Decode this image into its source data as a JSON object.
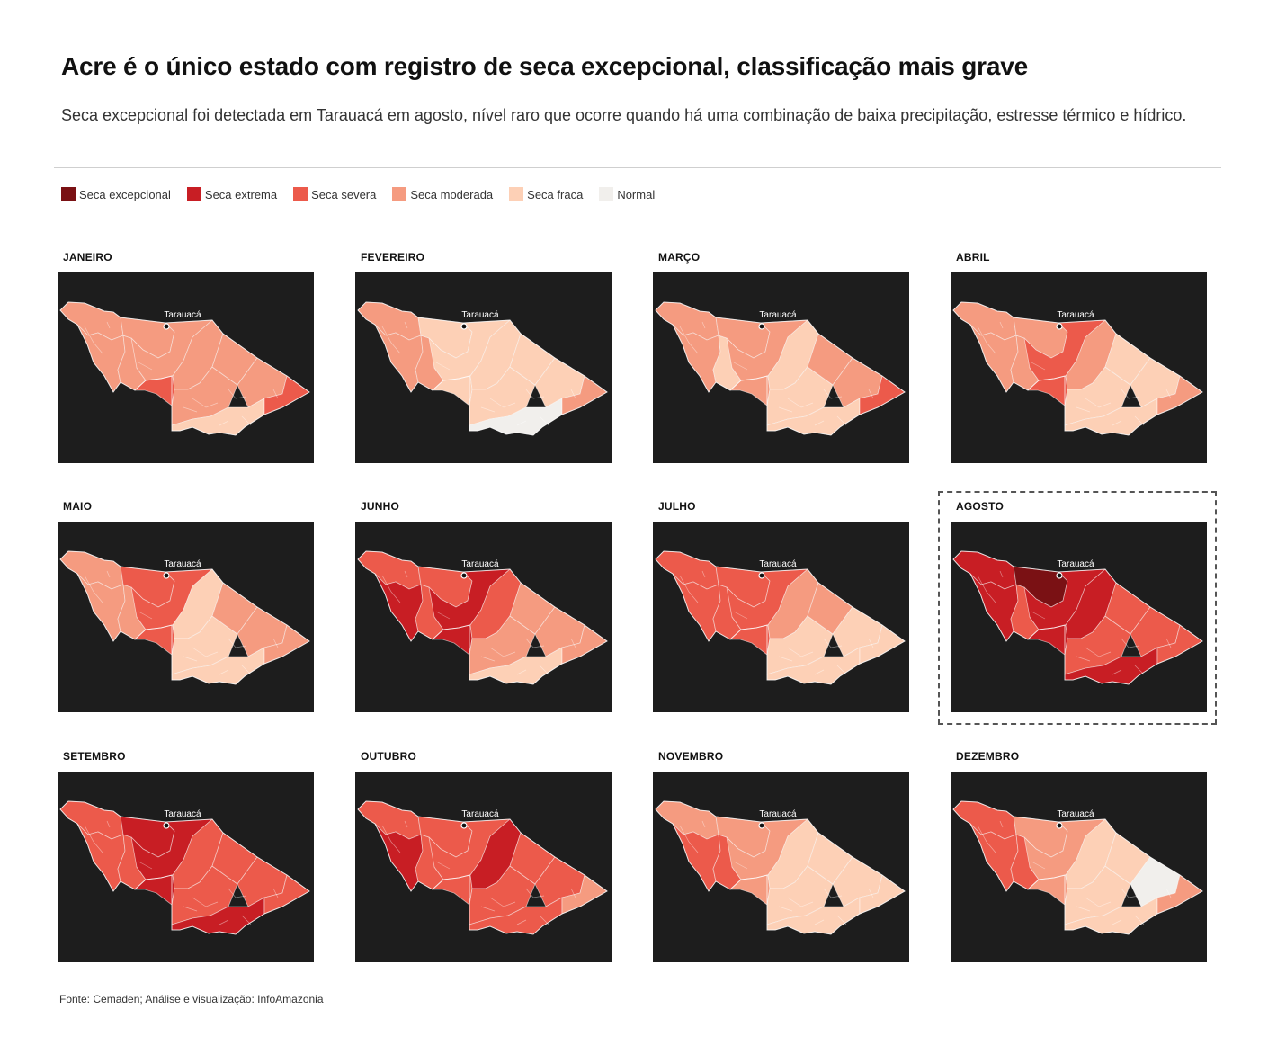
{
  "title": "Acre é o único estado com registro de seca excepcional, classificação mais grave",
  "subtitle": "Seca excepcional foi detectada em Tarauacá em agosto, nível raro que ocorre quando há uma combinação de baixa precipitação, estresse térmico e hídrico.",
  "legend": [
    {
      "label": "Seca excepcional",
      "color": "#7a1114"
    },
    {
      "label": "Seca extrema",
      "color": "#c81e24"
    },
    {
      "label": "Seca severa",
      "color": "#ec5a4b"
    },
    {
      "label": "Seca moderada",
      "color": "#f59b80"
    },
    {
      "label": "Seca fraca",
      "color": "#fdd0b6"
    },
    {
      "label": "Normal",
      "color": "#f1efec"
    }
  ],
  "city": "Tarauacá",
  "highlighted_month": "AGOSTO",
  "months": [
    {
      "name": "JANEIRO",
      "regions": {
        "w1": "seca moderada",
        "w2": "seca moderada",
        "w3": "seca moderada",
        "c1": "seca moderada",
        "c2": "seca moderada",
        "m1": "seca severa",
        "m2": "seca moderada",
        "m3": "seca moderada",
        "e1": "seca moderada",
        "e2": "seca moderada",
        "e3": "seca fraca",
        "e4": "seca severa"
      }
    },
    {
      "name": "FEVEREIRO",
      "regions": {
        "w1": "seca moderada",
        "w2": "seca moderada",
        "w3": "seca moderada",
        "c1": "seca fraca",
        "c2": "seca fraca",
        "m1": "seca fraca",
        "m2": "seca fraca",
        "m3": "seca fraca",
        "e1": "seca fraca",
        "e2": "seca fraca",
        "e3": "normal",
        "e4": "seca moderada"
      }
    },
    {
      "name": "MARÇO",
      "regions": {
        "w1": "seca moderada",
        "w2": "seca moderada",
        "w3": "seca fraca",
        "c1": "seca moderada",
        "c2": "seca moderada",
        "m1": "seca moderada",
        "m2": "seca fraca",
        "m3": "seca fraca",
        "e1": "seca moderada",
        "e2": "seca moderada",
        "e3": "seca fraca",
        "e4": "seca severa"
      }
    },
    {
      "name": "ABRIL",
      "regions": {
        "w1": "seca moderada",
        "w2": "seca moderada",
        "w3": "seca moderada",
        "c1": "seca moderada",
        "c2": "seca severa",
        "m1": "seca severa",
        "m2": "seca moderada",
        "m3": "seca fraca",
        "e1": "seca fraca",
        "e2": "seca fraca",
        "e3": "seca fraca",
        "e4": "seca moderada"
      }
    },
    {
      "name": "MAIO",
      "regions": {
        "w1": "seca moderada",
        "w2": "seca moderada",
        "w3": "seca moderada",
        "c1": "seca severa",
        "c2": "seca severa",
        "m1": "seca severa",
        "m2": "seca fraca",
        "m3": "seca fraca",
        "e1": "seca moderada",
        "e2": "seca moderada",
        "e3": "seca fraca",
        "e4": "seca moderada"
      }
    },
    {
      "name": "JUNHO",
      "regions": {
        "w1": "seca severa",
        "w2": "seca extrema",
        "w3": "seca severa",
        "c1": "seca severa",
        "c2": "seca extrema",
        "m1": "seca extrema",
        "m2": "seca severa",
        "m3": "seca moderada",
        "e1": "seca moderada",
        "e2": "seca moderada",
        "e3": "seca fraca",
        "e4": "seca moderada"
      }
    },
    {
      "name": "JULHO",
      "regions": {
        "w1": "seca severa",
        "w2": "seca severa",
        "w3": "seca severa",
        "c1": "seca severa",
        "c2": "seca severa",
        "m1": "seca severa",
        "m2": "seca moderada",
        "m3": "seca fraca",
        "e1": "seca moderada",
        "e2": "seca fraca",
        "e3": "seca fraca",
        "e4": "seca fraca"
      }
    },
    {
      "name": "AGOSTO",
      "regions": {
        "w1": "seca extrema",
        "w2": "seca extrema",
        "w3": "seca severa",
        "c1": "seca excepcional",
        "c2": "seca extrema",
        "m1": "seca extrema",
        "m2": "seca extrema",
        "m3": "seca severa",
        "e1": "seca severa",
        "e2": "seca severa",
        "e3": "seca extrema",
        "e4": "seca severa"
      }
    },
    {
      "name": "SETEMBRO",
      "regions": {
        "w1": "seca severa",
        "w2": "seca severa",
        "w3": "seca severa",
        "c1": "seca extrema",
        "c2": "seca extrema",
        "m1": "seca extrema",
        "m2": "seca severa",
        "m3": "seca severa",
        "e1": "seca severa",
        "e2": "seca severa",
        "e3": "seca extrema",
        "e4": "seca severa"
      }
    },
    {
      "name": "OUTUBRO",
      "regions": {
        "w1": "seca severa",
        "w2": "seca extrema",
        "w3": "seca severa",
        "c1": "seca severa",
        "c2": "seca severa",
        "m1": "seca severa",
        "m2": "seca extrema",
        "m3": "seca severa",
        "e1": "seca severa",
        "e2": "seca severa",
        "e3": "seca severa",
        "e4": "seca moderada"
      }
    },
    {
      "name": "NOVEMBRO",
      "regions": {
        "w1": "seca moderada",
        "w2": "seca severa",
        "w3": "seca severa",
        "c1": "seca moderada",
        "c2": "seca moderada",
        "m1": "seca moderada",
        "m2": "seca fraca",
        "m3": "seca fraca",
        "e1": "seca fraca",
        "e2": "seca fraca",
        "e3": "seca fraca",
        "e4": "seca fraca"
      }
    },
    {
      "name": "DEZEMBRO",
      "regions": {
        "w1": "seca severa",
        "w2": "seca severa",
        "w3": "seca severa",
        "c1": "seca moderada",
        "c2": "seca moderada",
        "m1": "seca moderada",
        "m2": "seca fraca",
        "m3": "seca fraca",
        "e1": "seca fraca",
        "e2": "normal",
        "e3": "seca fraca",
        "e4": "seca moderada"
      }
    }
  ],
  "source": "Fonte: Cemaden; Análise e visualização: InfoAmazonia"
}
